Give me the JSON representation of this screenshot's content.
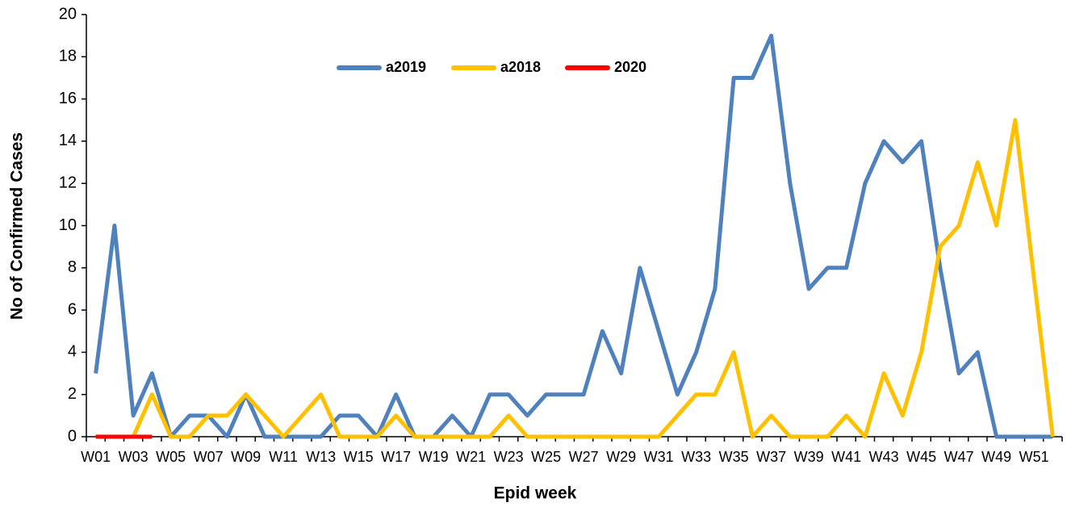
{
  "chart_data": {
    "type": "line",
    "x_label": "Epid week",
    "y_label": "No of Confirmed Cases",
    "categories": [
      "W01",
      null,
      "W03",
      null,
      "W05",
      null,
      "W07",
      null,
      "W09",
      null,
      "W11",
      null,
      "W13",
      null,
      "W15",
      null,
      "W17",
      null,
      "W19",
      null,
      "W21",
      null,
      "W23",
      null,
      "W25",
      null,
      "W27",
      null,
      "W29",
      null,
      "W31",
      null,
      "W33",
      null,
      "W35",
      null,
      "W37",
      null,
      "W39",
      null,
      "W41",
      null,
      "W43",
      null,
      "W45",
      null,
      "W47",
      null,
      "W49",
      null,
      "W51",
      null
    ],
    "series": [
      {
        "name": "a2019",
        "color": "#4f81bd",
        "values": [
          3,
          10,
          1,
          3,
          0,
          1,
          1,
          0,
          2,
          0,
          0,
          0,
          0,
          1,
          1,
          0,
          2,
          0,
          0,
          1,
          0,
          2,
          2,
          1,
          2,
          2,
          2,
          5,
          3,
          8,
          5,
          2,
          4,
          7,
          17,
          17,
          19,
          12,
          7,
          8,
          8,
          12,
          14,
          13,
          14,
          8,
          3,
          4,
          0,
          0,
          0,
          0
        ]
      },
      {
        "name": "a2018",
        "color": "#ffc000",
        "values": [
          0,
          0,
          0,
          2,
          0,
          0,
          1,
          1,
          2,
          1,
          0,
          1,
          2,
          0,
          0,
          0,
          1,
          0,
          0,
          0,
          0,
          0,
          1,
          0,
          0,
          0,
          0,
          0,
          0,
          0,
          0,
          1,
          2,
          2,
          4,
          0,
          1,
          0,
          0,
          0,
          1,
          0,
          3,
          1,
          4,
          9,
          10,
          13,
          10,
          15,
          7.5,
          0
        ]
      },
      {
        "name": "2020",
        "color": "#ff0000",
        "values": [
          0,
          0,
          0,
          0,
          null,
          null,
          null,
          null,
          null,
          null,
          null,
          null,
          null,
          null,
          null,
          null,
          null,
          null,
          null,
          null,
          null,
          null,
          null,
          null,
          null,
          null,
          null,
          null,
          null,
          null,
          null,
          null,
          null,
          null,
          null,
          null,
          null,
          null,
          null,
          null,
          null,
          null,
          null,
          null,
          null,
          null,
          null,
          null,
          null,
          null,
          null,
          null
        ]
      }
    ],
    "ylim": [
      0,
      20
    ],
    "yticks": [
      0,
      2,
      4,
      6,
      8,
      10,
      12,
      14,
      16,
      18,
      20
    ],
    "grid": false,
    "legend": "top"
  }
}
